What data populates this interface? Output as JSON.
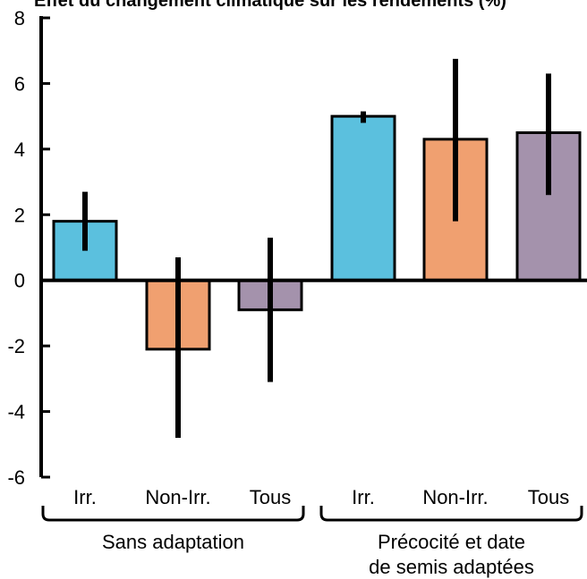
{
  "chart_data": {
    "type": "bar",
    "title": "Effet du changement climatique sur les rendements (%)",
    "ylim": [
      -6,
      8
    ],
    "yticks": [
      8,
      6,
      4,
      2,
      0,
      -2,
      -4,
      -6
    ],
    "ytick_labels": [
      "8",
      "6",
      "4",
      "2",
      "0",
      "-2",
      "-4",
      "-6"
    ],
    "categories": [
      "Irr.",
      "Non-Irr.",
      "Tous",
      "Irr.",
      "Non-Irr.",
      "Tous"
    ],
    "values": [
      1.8,
      -2.1,
      -0.9,
      5.0,
      4.3,
      4.5
    ],
    "error_low": [
      0.9,
      -4.8,
      -3.1,
      4.8,
      1.8,
      2.6
    ],
    "error_high": [
      2.7,
      0.7,
      1.3,
      5.15,
      6.75,
      6.3
    ],
    "groups": [
      {
        "label": "Sans adaptation",
        "label_lines": [
          "Sans adaptation"
        ],
        "indices": [
          0,
          1,
          2
        ]
      },
      {
        "label": "Précocité et date de semis adaptées",
        "label_lines": [
          "Précocité et date",
          "de semis adaptées"
        ],
        "indices": [
          3,
          4,
          5
        ]
      }
    ],
    "colors": [
      "#5bc0de",
      "#f0a070",
      "#a492ac",
      "#5bc0de",
      "#f0a070",
      "#a492ac"
    ],
    "grid": false,
    "legend": "none"
  }
}
